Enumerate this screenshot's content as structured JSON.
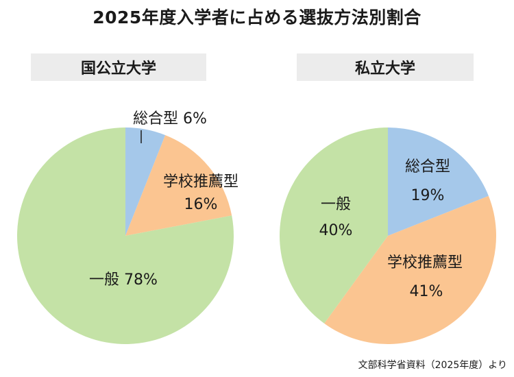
{
  "title": "2025年度入学者に占める選抜方法別割合",
  "source": "文部科学省資料（2025年度）より",
  "colors": {
    "sogo": "#a5c8ea",
    "gakko": "#fbc591",
    "ippan": "#c4e2a6",
    "label_bg": "#ececec"
  },
  "chart_data": [
    {
      "type": "pie",
      "title": "国公立大学",
      "slices": [
        {
          "name": "総合型",
          "value": 6,
          "color": "#a5c8ea",
          "label": "総合型 6%"
        },
        {
          "name": "学校推薦型",
          "value": 16,
          "color": "#fbc591",
          "label_name": "学校推薦型",
          "label_pct": "16%"
        },
        {
          "name": "一般",
          "value": 78,
          "color": "#c4e2a6",
          "label": "一般 78%"
        }
      ]
    },
    {
      "type": "pie",
      "title": "私立大学",
      "slices": [
        {
          "name": "総合型",
          "value": 19,
          "color": "#a5c8ea",
          "label_name": "総合型",
          "label_pct": "19%"
        },
        {
          "name": "学校推薦型",
          "value": 41,
          "color": "#fbc591",
          "label_name": "学校推薦型",
          "label_pct": "41%"
        },
        {
          "name": "一般",
          "value": 40,
          "color": "#c4e2a6",
          "label_name": "一般",
          "label_pct": "40%"
        }
      ]
    }
  ]
}
